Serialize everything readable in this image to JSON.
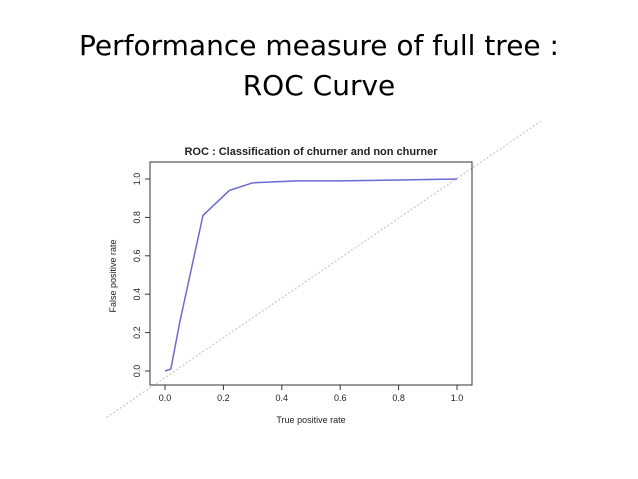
{
  "slide": {
    "title_line1": "Performance measure of full tree :",
    "title_line2": "ROC Curve"
  },
  "chart_data": {
    "type": "line",
    "title": "ROC : Classification of churner and non churner",
    "xlabel": "True positive rate",
    "ylabel": "False positive rate",
    "xlim": [
      0.0,
      1.0
    ],
    "ylim": [
      0.0,
      1.0
    ],
    "xticks": [
      "0.0",
      "0.2",
      "0.4",
      "0.6",
      "0.8",
      "1.0"
    ],
    "yticks": [
      "0.0",
      "0.2",
      "0.4",
      "0.6",
      "0.8",
      "1.0"
    ],
    "grid": false,
    "series": [
      {
        "color": "#6a6ad0",
        "x": [
          0.0,
          0.02,
          0.05,
          0.13,
          0.22,
          0.3,
          0.45,
          0.6,
          0.8,
          1.0
        ],
        "y": [
          0.0,
          0.01,
          0.25,
          0.81,
          0.94,
          0.98,
          0.99,
          0.99,
          0.995,
          1.0
        ]
      }
    ],
    "reference_line": {
      "style": "dotted",
      "color": "#c8c8c8",
      "from": [
        -0.2,
        -0.2
      ],
      "to": [
        1.3,
        1.3
      ]
    }
  }
}
